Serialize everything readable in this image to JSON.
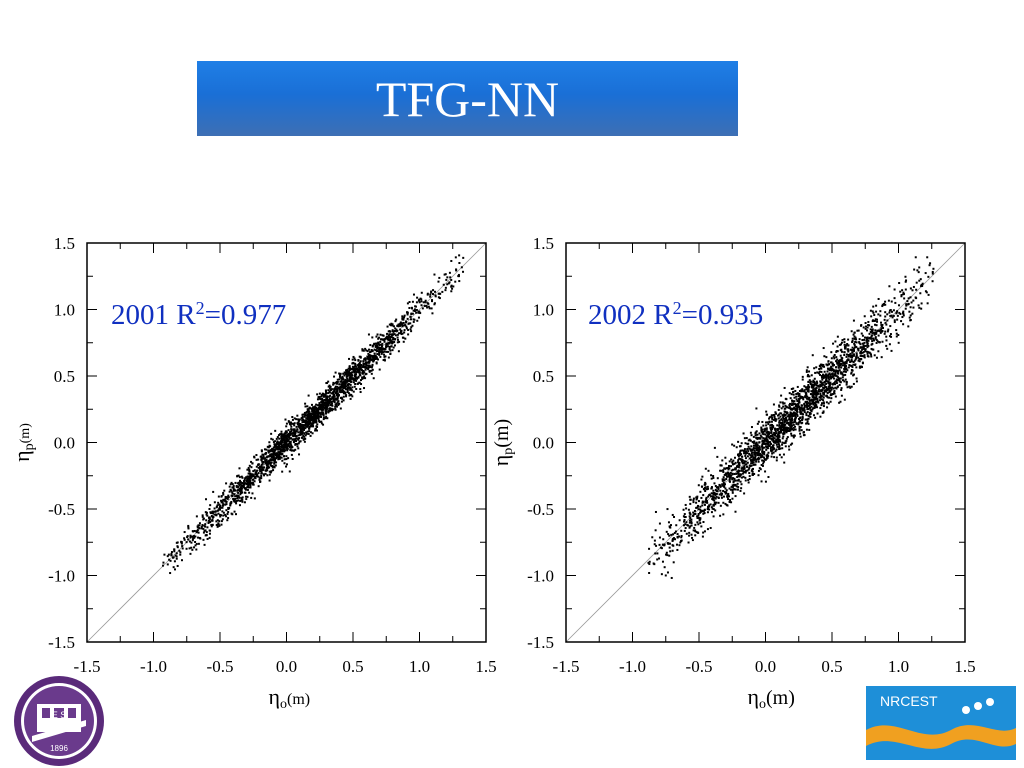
{
  "title": "TFG-NN",
  "chart_data": [
    {
      "type": "scatter",
      "label": "2001 R",
      "label_exp": "2",
      "label_tail": "=0.977",
      "r2": 0.977,
      "year": "2001",
      "xlim": [
        -1.5,
        1.5
      ],
      "ylim": [
        -1.5,
        1.5
      ],
      "xticks": [
        "-1.5",
        "-1.0",
        "-0.5",
        "0.0",
        "0.5",
        "1.0",
        "1.5"
      ],
      "yticks": [
        "-1.5",
        "-1.0",
        "-0.5",
        "0.0",
        "0.5",
        "1.0",
        "1.5"
      ],
      "xlabel": "η",
      "xlabel_sub": "o",
      "xlabel_unit": "(m)",
      "ylabel": "η",
      "ylabel_sub": "p",
      "ylabel_unit": "(m)",
      "reference_line": "y = x",
      "point_count": 2200,
      "x_range_of_points": [
        -0.93,
        1.33
      ],
      "scatter_spread": 0.06,
      "data_color": "#000000"
    },
    {
      "type": "scatter",
      "label": "2002 R",
      "label_exp": "2",
      "label_tail": "=0.935",
      "r2": 0.935,
      "year": "2002",
      "xlim": [
        -1.5,
        1.5
      ],
      "ylim": [
        -1.5,
        1.5
      ],
      "xticks": [
        "-1.5",
        "-1.0",
        "-0.5",
        "0.0",
        "0.5",
        "1.0",
        "1.5"
      ],
      "yticks": [
        "-1.5",
        "-1.0",
        "-0.5",
        "0.0",
        "0.5",
        "1.0",
        "1.5"
      ],
      "xlabel": "η",
      "xlabel_sub": "o",
      "xlabel_unit": "(m)",
      "ylabel": "η",
      "ylabel_sub": "p",
      "ylabel_unit": "(m)",
      "reference_line": "y = x",
      "point_count": 2200,
      "x_range_of_points": [
        -0.88,
        1.28
      ],
      "scatter_spread": 0.1,
      "data_color": "#000000"
    }
  ],
  "logos": {
    "left": {
      "text": "1896",
      "letters": "E S"
    },
    "right": {
      "text": "NRCEST"
    }
  },
  "colors": {
    "title_bg": "#1f7fe6",
    "label_color": "#1030c0"
  }
}
